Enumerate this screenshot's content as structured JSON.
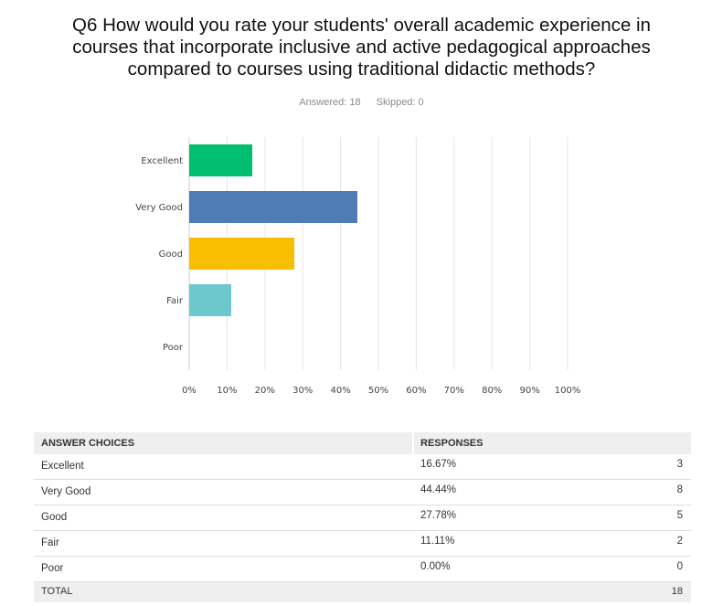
{
  "question": {
    "lines": [
      "Q6 How would you rate your students' overall academic experience in",
      "courses that incorporate inclusive and active pedagogical approaches",
      "compared to courses using traditional didactic methods?"
    ]
  },
  "meta": {
    "answered": "Answered: 18",
    "skipped": "Skipped: 0"
  },
  "chart_data": {
    "type": "bar",
    "orientation": "horizontal",
    "categories": [
      "Excellent",
      "Very Good",
      "Good",
      "Fair",
      "Poor"
    ],
    "values": [
      16.67,
      44.44,
      27.78,
      11.11,
      0
    ],
    "colors": [
      "#00bf6f",
      "#507cb6",
      "#f9be00",
      "#6bc8cd",
      "#ff8b4f"
    ],
    "xlim": [
      0,
      100
    ],
    "xticks": [
      "0%",
      "10%",
      "20%",
      "30%",
      "40%",
      "50%",
      "60%",
      "70%",
      "80%",
      "90%",
      "100%"
    ],
    "grid": true
  },
  "table": {
    "headers": [
      "ANSWER CHOICES",
      "RESPONSES"
    ],
    "rows": [
      {
        "choice": "Excellent",
        "percent": "16.67%",
        "count": "3"
      },
      {
        "choice": "Very Good",
        "percent": "44.44%",
        "count": "8"
      },
      {
        "choice": "Good",
        "percent": "27.78%",
        "count": "5"
      },
      {
        "choice": "Fair",
        "percent": "11.11%",
        "count": "2"
      },
      {
        "choice": "Poor",
        "percent": "0.00%",
        "count": "0"
      }
    ],
    "total_label": "TOTAL",
    "total_count": "18"
  }
}
